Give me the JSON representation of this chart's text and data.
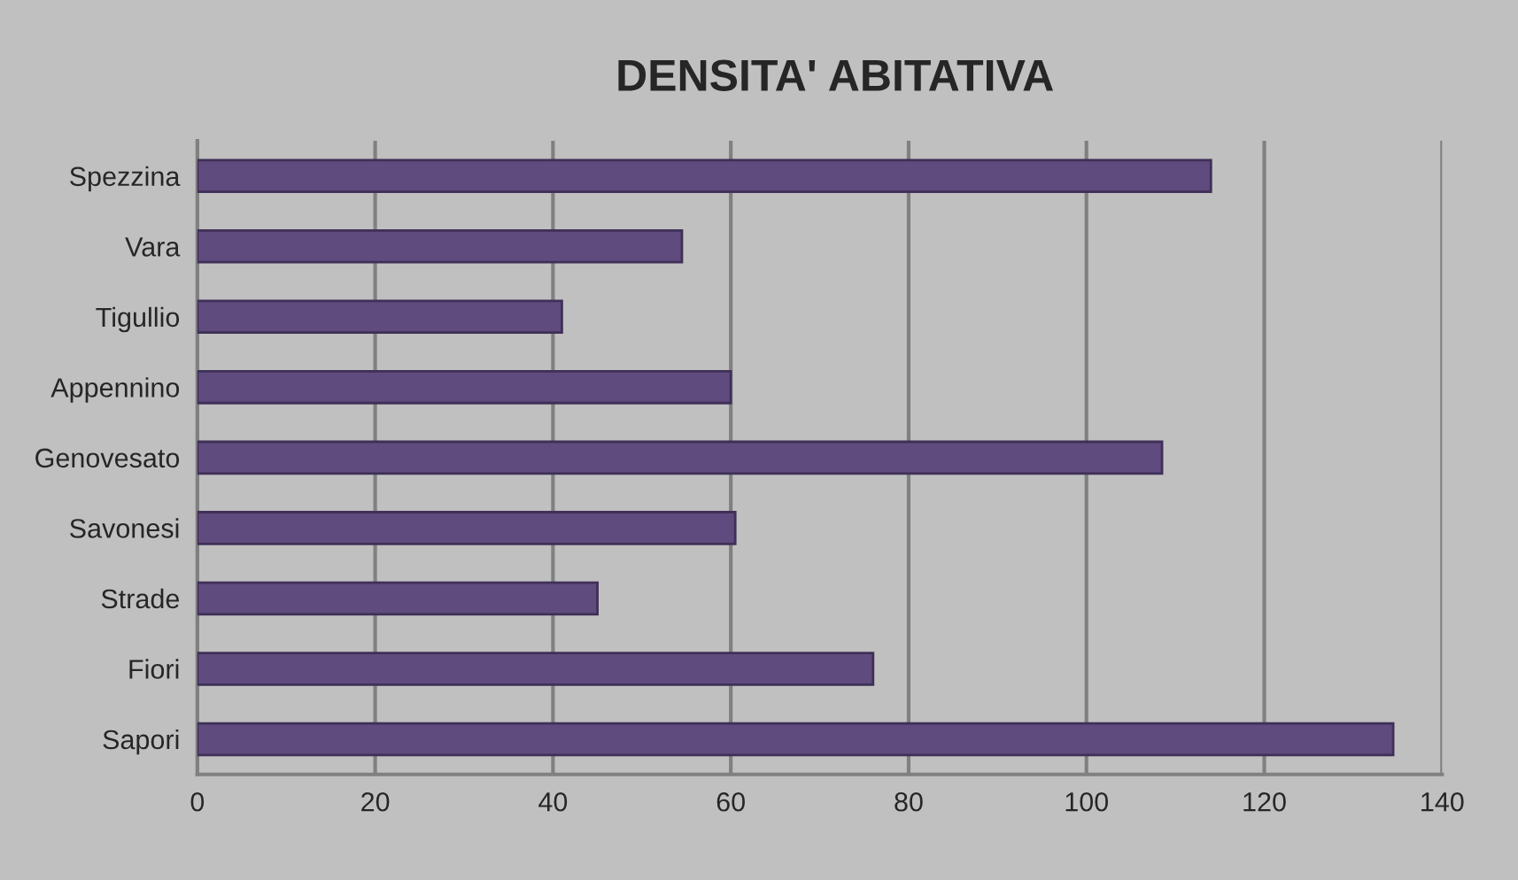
{
  "chart_data": {
    "type": "bar",
    "orientation": "horizontal",
    "title": "DENSITA' ABITATIVA",
    "categories": [
      "Spezzina",
      "Vara",
      "Tigullio",
      "Appennino",
      "Genovesato",
      "Savonesi",
      "Strade",
      "Fiori",
      "Sapori"
    ],
    "values": [
      114,
      54.5,
      41,
      60,
      108.5,
      60.5,
      45,
      76,
      134.5
    ],
    "color": "#5f4b7d",
    "xlim": [
      0,
      140
    ],
    "xticks": [
      0,
      20,
      40,
      60,
      80,
      100,
      120,
      140
    ],
    "grid": "x",
    "legend": false
  }
}
